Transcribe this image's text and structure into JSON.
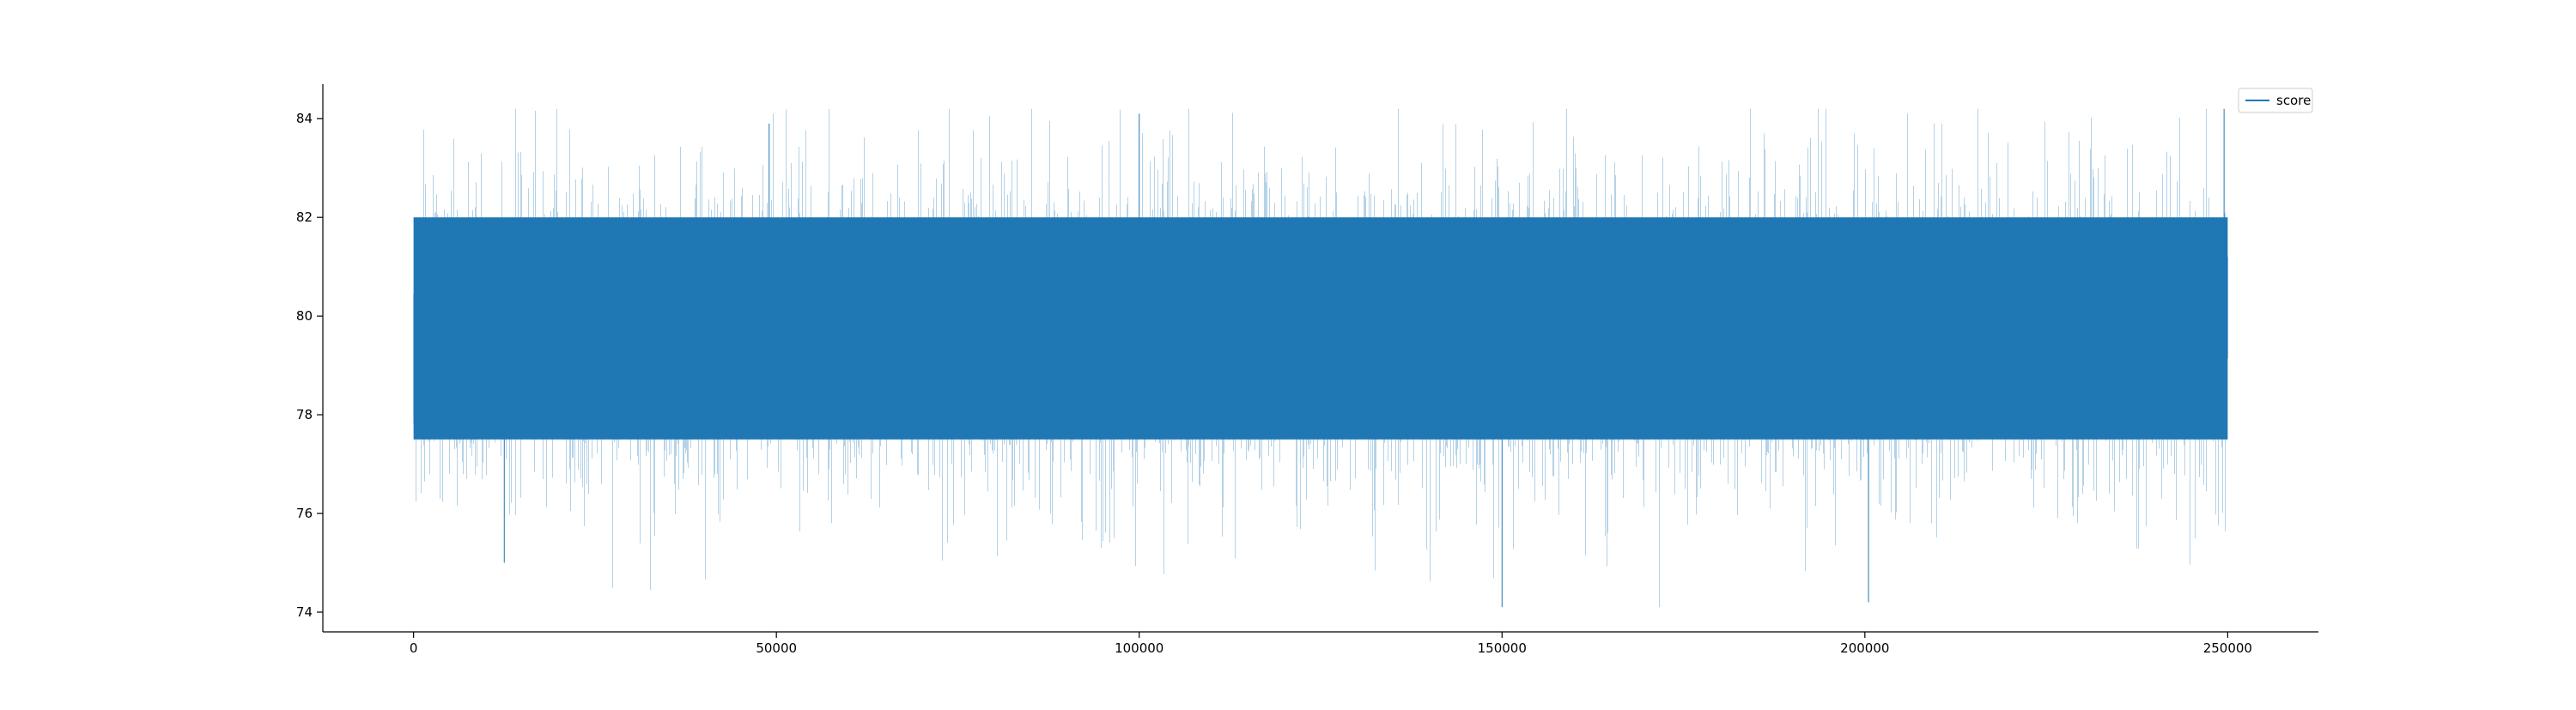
{
  "chart_data": {
    "type": "line",
    "title": "",
    "xlabel": "",
    "ylabel": "",
    "series": [
      {
        "name": "score",
        "color": "#1f77b4",
        "x_range": [
          0,
          250000
        ],
        "num_points": 250000,
        "mean": 79.6,
        "dense_band": [
          77.5,
          82.0
        ],
        "max": 84.2,
        "min": 74.1,
        "sample": [
          {
            "x": 0,
            "y": 79.6
          },
          {
            "x": 12500,
            "y": 75.0
          },
          {
            "x": 49000,
            "y": 83.9
          },
          {
            "x": 100000,
            "y": 84.1
          },
          {
            "x": 150000,
            "y": 74.1
          },
          {
            "x": 200500,
            "y": 74.2
          },
          {
            "x": 249500,
            "y": 84.2
          }
        ]
      }
    ],
    "xlim": [
      -12500,
      262500
    ],
    "ylim": [
      73.6,
      84.7
    ],
    "x_ticks": [
      0,
      50000,
      100000,
      150000,
      200000,
      250000
    ],
    "x_tick_labels": [
      "0",
      "50000",
      "100000",
      "150000",
      "200000",
      "250000"
    ],
    "y_ticks": [
      74,
      76,
      78,
      80,
      82,
      84
    ],
    "y_tick_labels": [
      "74",
      "76",
      "78",
      "80",
      "82",
      "84"
    ],
    "grid": false,
    "legend": {
      "position": "top-right",
      "entries": [
        "score"
      ]
    },
    "spines": [
      "left",
      "bottom"
    ]
  }
}
